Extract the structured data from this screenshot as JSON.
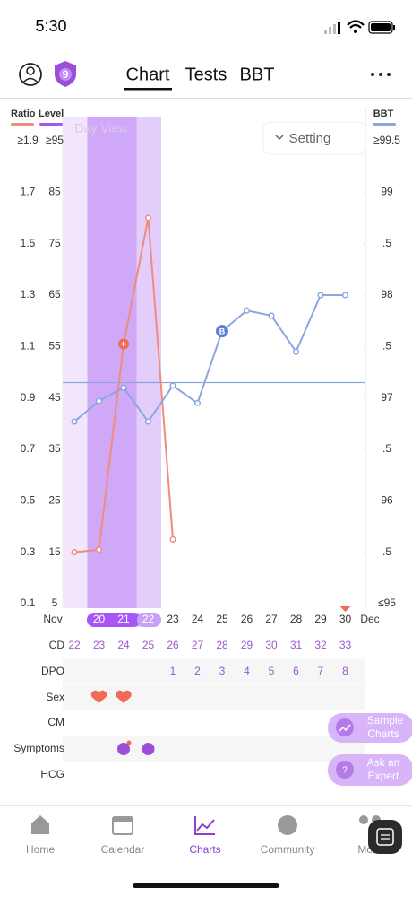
{
  "status_bar": {
    "time": "5:30"
  },
  "header": {
    "badge": "9",
    "tabs": [
      "Chart",
      "Tests",
      "BBT"
    ]
  },
  "view_label": "Day View",
  "setting": "Setting",
  "chart_data": {
    "type": "line",
    "x_label_start": "Nov",
    "x_label_end": "Dec",
    "categories": [
      null,
      "20",
      "21",
      "22",
      "23",
      "24",
      "25",
      "26",
      "27",
      "28",
      "29",
      "30"
    ],
    "series": [
      {
        "name": "Ratio",
        "color": "#f28b7b",
        "axis": "y",
        "values": [
          0.3,
          0.31,
          1.11,
          1.6,
          0.35,
          null,
          null,
          null,
          null,
          null,
          null,
          null
        ]
      },
      {
        "name": "BBT",
        "color": "#8aa6e0",
        "axis": "y2",
        "values": [
          96.77,
          96.97,
          97.1,
          96.77,
          97.12,
          96.95,
          97.65,
          97.85,
          97.8,
          97.45,
          98.0,
          98.0
        ],
        "marker_index": 6,
        "marker_label": "B"
      }
    ],
    "ylim": [
      0.1,
      1.9
    ],
    "yticks": [
      {
        "value": 1.9,
        "label": "≥1.9"
      },
      1.7,
      1.5,
      1.3,
      1.1,
      0.9,
      0.7,
      0.5,
      0.3,
      0.1
    ],
    "level_label": "Level",
    "level_color": "#a855f7",
    "level_lim": [
      5,
      95
    ],
    "level_ticks": [
      {
        "value": 95,
        "label": "≥95"
      },
      85,
      75,
      65,
      55,
      45,
      35,
      25,
      15,
      5
    ],
    "y2lim": [
      95,
      99.5
    ],
    "y2ticks": [
      {
        "value": 99.5,
        "label": "≥99.5"
      },
      99,
      {
        "value": 98.5,
        "label": ".5"
      },
      98,
      {
        "value": 97.5,
        "label": ".5"
      },
      97,
      {
        "value": 96.5,
        "label": ".5"
      },
      96,
      {
        "value": 95.5,
        "label": ".5"
      },
      {
        "value": 95,
        "label": "≤95"
      }
    ],
    "coverline": 97.15
  },
  "rows": {
    "labels": [
      "CD",
      "DPO",
      "Sex",
      "CM",
      "Symptoms",
      "HCG"
    ],
    "cd": [
      22,
      23,
      24,
      25,
      26,
      27,
      28,
      29,
      30,
      31,
      32,
      33
    ],
    "dpo": [
      null,
      null,
      null,
      null,
      1,
      2,
      3,
      4,
      5,
      6,
      7,
      8
    ]
  },
  "buttons": [
    [
      "Sample",
      "Charts"
    ],
    [
      "Ask an",
      "Expert"
    ]
  ],
  "nav": [
    "Home",
    "Calendar",
    "Charts",
    "Community",
    "More"
  ]
}
